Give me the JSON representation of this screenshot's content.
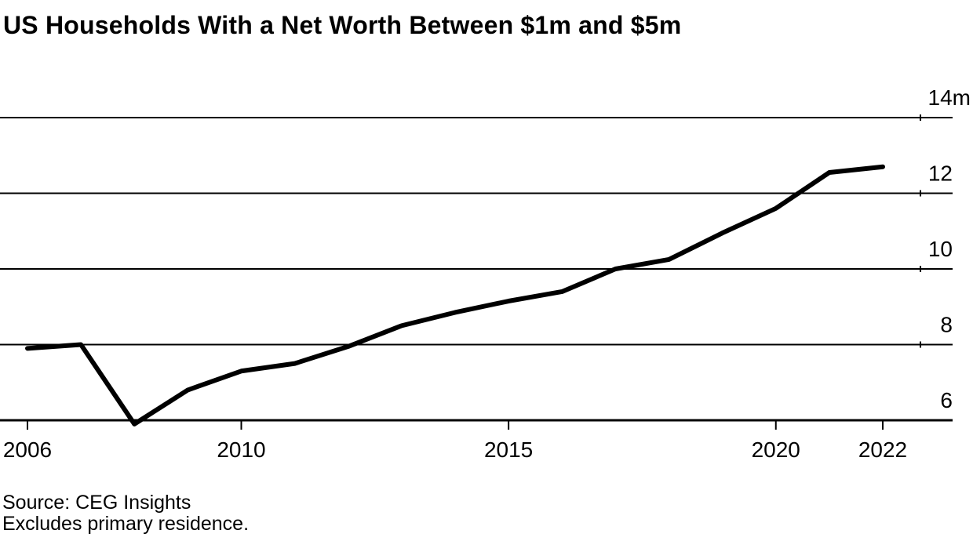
{
  "title": "US Households With a Net Worth Between $1m and $5m",
  "chart_data": {
    "type": "line",
    "title": "US Households With a Net Worth Between $1m and $5m",
    "x": [
      2006,
      2007,
      2008,
      2009,
      2010,
      2011,
      2012,
      2013,
      2014,
      2015,
      2016,
      2017,
      2018,
      2019,
      2020,
      2021,
      2022
    ],
    "values": [
      7.9,
      8.0,
      5.9,
      6.8,
      7.3,
      7.5,
      7.95,
      8.5,
      8.85,
      9.15,
      9.4,
      10.0,
      10.25,
      10.95,
      11.6,
      12.55,
      12.7
    ],
    "units": "millions of households",
    "ylim": [
      6,
      14
    ],
    "y_ticks": [
      {
        "value": 14,
        "label": "14m"
      },
      {
        "value": 12,
        "label": "12"
      },
      {
        "value": 10,
        "label": "10"
      },
      {
        "value": 8,
        "label": "8"
      },
      {
        "value": 6,
        "label": "6"
      }
    ],
    "x_ticks": [
      {
        "value": 2006,
        "label": "2006"
      },
      {
        "value": 2010,
        "label": "2010"
      },
      {
        "value": 2015,
        "label": "2015"
      },
      {
        "value": 2020,
        "label": "2020"
      },
      {
        "value": 2022,
        "label": "2022"
      }
    ],
    "grid": "horizontal",
    "legend": "none",
    "y_axis_side": "right",
    "line_color": "#000000",
    "background_color": "#ffffff"
  },
  "source": {
    "line1": "Source: CEG Insights",
    "line2": "Excludes primary residence."
  }
}
